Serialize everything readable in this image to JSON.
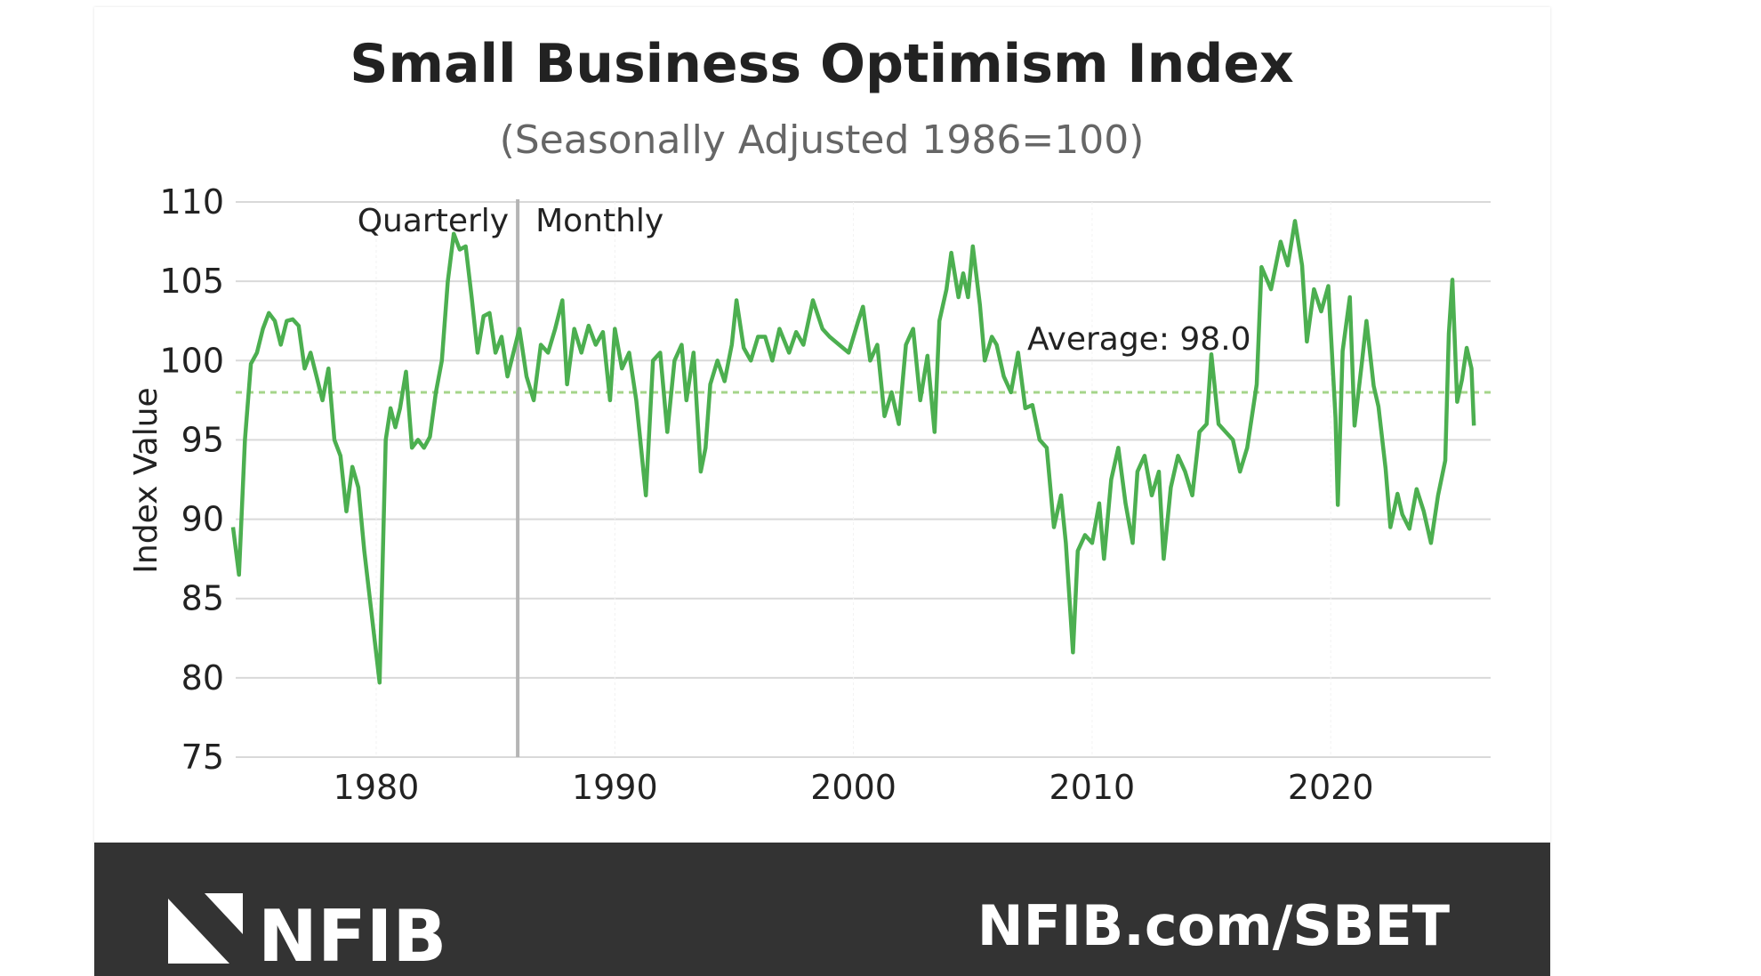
{
  "chart_data": {
    "type": "line",
    "title": "Small Business Optimism Index",
    "subtitle": "(Seasonally Adjusted 1986=100)",
    "xlabel": "",
    "ylabel": "Index Value",
    "ylim": [
      75,
      110
    ],
    "xlim": [
      1973.9,
      2026.7
    ],
    "yticks": [
      75,
      80,
      85,
      90,
      95,
      100,
      105,
      110
    ],
    "xticks": [
      1980,
      1990,
      2000,
      2010,
      2020
    ],
    "grid": true,
    "line_color": "#4caf50",
    "average": {
      "value": 98.0,
      "label": "Average: 98.0",
      "color": "#a5d48a"
    },
    "divider": {
      "x": 1985.93,
      "left_label": "Quarterly",
      "right_label": "Monthly"
    },
    "series": [
      {
        "name": "Small Business Optimism Index",
        "points": [
          [
            1974.0,
            89.5
          ],
          [
            1974.25,
            86.5
          ],
          [
            1974.5,
            95
          ],
          [
            1974.75,
            99.8
          ],
          [
            1975.0,
            100.5
          ],
          [
            1975.25,
            102
          ],
          [
            1975.5,
            103
          ],
          [
            1975.75,
            102.5
          ],
          [
            1976.0,
            101
          ],
          [
            1976.25,
            102.5
          ],
          [
            1976.5,
            102.6
          ],
          [
            1976.75,
            102.2
          ],
          [
            1977.0,
            99.5
          ],
          [
            1977.25,
            100.5
          ],
          [
            1977.5,
            99
          ],
          [
            1977.75,
            97.5
          ],
          [
            1978.0,
            99.5
          ],
          [
            1978.25,
            95
          ],
          [
            1978.5,
            94
          ],
          [
            1978.75,
            90.5
          ],
          [
            1979.0,
            93.3
          ],
          [
            1979.25,
            92
          ],
          [
            1979.5,
            88
          ],
          [
            1980.14,
            79.7
          ],
          [
            1980.4,
            95
          ],
          [
            1980.6,
            97
          ],
          [
            1980.8,
            95.8
          ],
          [
            1981.0,
            97
          ],
          [
            1981.25,
            99.3
          ],
          [
            1981.5,
            94.5
          ],
          [
            1981.75,
            95
          ],
          [
            1982.0,
            94.5
          ],
          [
            1982.25,
            95.2
          ],
          [
            1982.5,
            98
          ],
          [
            1982.75,
            100
          ],
          [
            1983.0,
            105
          ],
          [
            1983.25,
            108
          ],
          [
            1983.5,
            107
          ],
          [
            1983.75,
            107.2
          ],
          [
            1984.0,
            104
          ],
          [
            1984.25,
            100.5
          ],
          [
            1984.5,
            102.8
          ],
          [
            1984.75,
            103
          ],
          [
            1985.0,
            100.5
          ],
          [
            1985.25,
            101.5
          ],
          [
            1985.5,
            99
          ],
          [
            1985.75,
            100.5
          ],
          [
            1986.0,
            102
          ],
          [
            1986.3,
            99
          ],
          [
            1986.6,
            97.5
          ],
          [
            1986.9,
            101
          ],
          [
            1987.2,
            100.5
          ],
          [
            1987.5,
            102
          ],
          [
            1987.8,
            103.8
          ],
          [
            1988.0,
            98.5
          ],
          [
            1988.3,
            102
          ],
          [
            1988.6,
            100.5
          ],
          [
            1988.9,
            102.2
          ],
          [
            1989.2,
            101
          ],
          [
            1989.5,
            101.8
          ],
          [
            1989.8,
            97.5
          ],
          [
            1990.0,
            102
          ],
          [
            1990.3,
            99.5
          ],
          [
            1990.6,
            100.5
          ],
          [
            1990.9,
            97.5
          ],
          [
            1991.3,
            91.5
          ],
          [
            1991.6,
            100
          ],
          [
            1991.9,
            100.5
          ],
          [
            1992.2,
            95.5
          ],
          [
            1992.5,
            100
          ],
          [
            1992.8,
            101
          ],
          [
            1993.0,
            97.5
          ],
          [
            1993.3,
            100.5
          ],
          [
            1993.6,
            93
          ],
          [
            1993.8,
            94.5
          ],
          [
            1994.0,
            98.5
          ],
          [
            1994.3,
            100
          ],
          [
            1994.6,
            98.7
          ],
          [
            1994.9,
            101
          ],
          [
            1995.1,
            103.8
          ],
          [
            1995.4,
            100.8
          ],
          [
            1995.7,
            100
          ],
          [
            1996.0,
            101.5
          ],
          [
            1996.3,
            101.5
          ],
          [
            1996.6,
            100
          ],
          [
            1996.9,
            102
          ],
          [
            1997.3,
            100.5
          ],
          [
            1997.6,
            101.8
          ],
          [
            1997.9,
            101
          ],
          [
            1998.3,
            103.8
          ],
          [
            1998.7,
            102
          ],
          [
            1999.0,
            101.5
          ],
          [
            1999.4,
            101
          ],
          [
            1999.8,
            100.5
          ],
          [
            2000.2,
            102.5
          ],
          [
            2000.4,
            103.4
          ],
          [
            2000.7,
            100
          ],
          [
            2001.0,
            101
          ],
          [
            2001.3,
            96.5
          ],
          [
            2001.6,
            98
          ],
          [
            2001.9,
            96
          ],
          [
            2002.2,
            101
          ],
          [
            2002.5,
            102
          ],
          [
            2002.8,
            97.5
          ],
          [
            2003.1,
            100.3
          ],
          [
            2003.4,
            95.5
          ],
          [
            2003.6,
            102.5
          ],
          [
            2003.9,
            104.5
          ],
          [
            2004.1,
            106.8
          ],
          [
            2004.4,
            104
          ],
          [
            2004.6,
            105.5
          ],
          [
            2004.8,
            104
          ],
          [
            2005.0,
            107.2
          ],
          [
            2005.3,
            103.5
          ],
          [
            2005.5,
            100
          ],
          [
            2005.8,
            101.5
          ],
          [
            2006.0,
            101
          ],
          [
            2006.3,
            99
          ],
          [
            2006.6,
            98
          ],
          [
            2006.9,
            100.5
          ],
          [
            2007.2,
            97
          ],
          [
            2007.5,
            97.2
          ],
          [
            2007.8,
            95
          ],
          [
            2008.1,
            94.5
          ],
          [
            2008.4,
            89.5
          ],
          [
            2008.7,
            91.5
          ],
          [
            2008.9,
            88.5
          ],
          [
            2009.2,
            81.6
          ],
          [
            2009.4,
            88
          ],
          [
            2009.7,
            89
          ],
          [
            2010.0,
            88.5
          ],
          [
            2010.3,
            91
          ],
          [
            2010.5,
            87.5
          ],
          [
            2010.8,
            92.5
          ],
          [
            2011.1,
            94.5
          ],
          [
            2011.4,
            91
          ],
          [
            2011.7,
            88.5
          ],
          [
            2011.9,
            93
          ],
          [
            2012.2,
            94
          ],
          [
            2012.5,
            91.5
          ],
          [
            2012.8,
            93
          ],
          [
            2013.0,
            87.5
          ],
          [
            2013.3,
            92
          ],
          [
            2013.6,
            94
          ],
          [
            2013.9,
            93
          ],
          [
            2014.2,
            91.5
          ],
          [
            2014.5,
            95.5
          ],
          [
            2014.8,
            96
          ],
          [
            2015.0,
            100.4
          ],
          [
            2015.3,
            96
          ],
          [
            2015.6,
            95.5
          ],
          [
            2015.9,
            95
          ],
          [
            2016.2,
            93
          ],
          [
            2016.5,
            94.5
          ],
          [
            2016.9,
            98.5
          ],
          [
            2017.1,
            105.9
          ],
          [
            2017.5,
            104.5
          ],
          [
            2017.9,
            107.5
          ],
          [
            2018.2,
            106
          ],
          [
            2018.5,
            108.8
          ],
          [
            2018.8,
            106
          ],
          [
            2019.0,
            101.2
          ],
          [
            2019.3,
            104.5
          ],
          [
            2019.6,
            103.1
          ],
          [
            2019.9,
            104.7
          ],
          [
            2020.2,
            96.4
          ],
          [
            2020.3,
            90.9
          ],
          [
            2020.5,
            100.6
          ],
          [
            2020.8,
            104
          ],
          [
            2021.0,
            95.9
          ],
          [
            2021.3,
            99.8
          ],
          [
            2021.5,
            102.5
          ],
          [
            2021.8,
            98.4
          ],
          [
            2022.0,
            97.1
          ],
          [
            2022.3,
            93.2
          ],
          [
            2022.5,
            89.5
          ],
          [
            2022.8,
            91.6
          ],
          [
            2023.0,
            90.3
          ],
          [
            2023.3,
            89.4
          ],
          [
            2023.6,
            91.9
          ],
          [
            2023.9,
            90.5
          ],
          [
            2024.2,
            88.5
          ],
          [
            2024.5,
            91.5
          ],
          [
            2024.8,
            93.7
          ],
          [
            2024.95,
            101.7
          ],
          [
            2025.1,
            105.1
          ],
          [
            2025.3,
            97.4
          ],
          [
            2025.5,
            98.8
          ],
          [
            2025.7,
            100.8
          ],
          [
            2025.9,
            99.5
          ],
          [
            2026.0,
            95.9
          ]
        ]
      }
    ]
  },
  "footer": {
    "logo_text": "NFIB",
    "url": "NFIB.com/SBET",
    "background": "#333333"
  }
}
